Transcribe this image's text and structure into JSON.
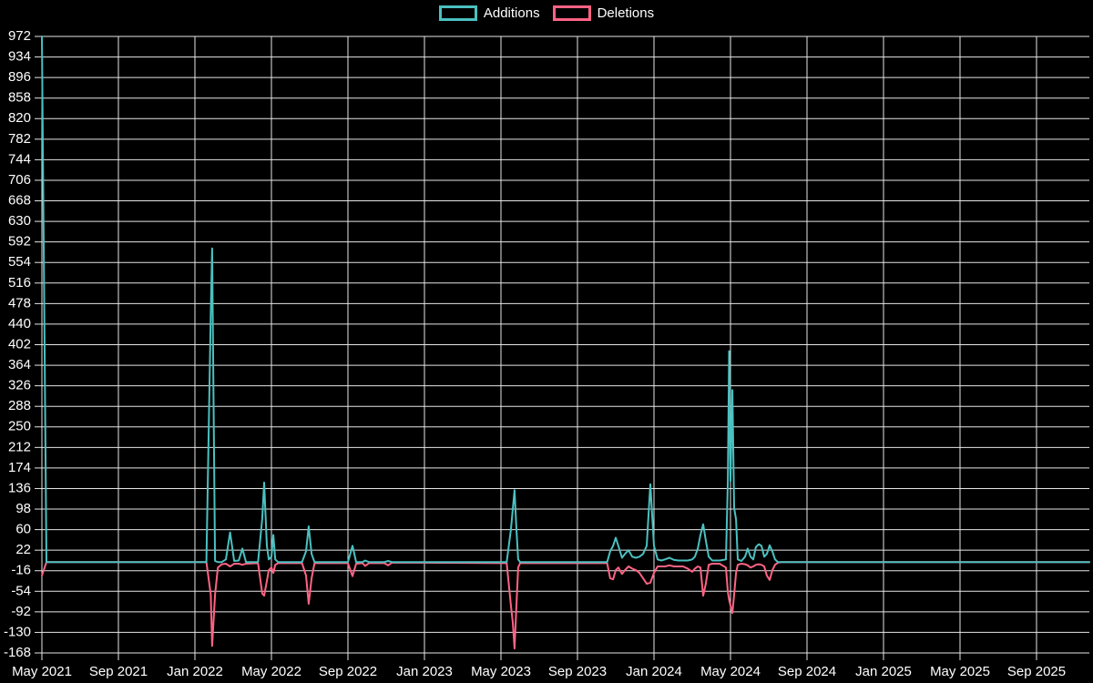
{
  "colors": {
    "background": "#000000",
    "grid": "#e6e6e6",
    "text": "#ffffff",
    "additions": "#4bc0c0",
    "deletions": "#ff6384"
  },
  "legend": {
    "items": [
      {
        "label": "Additions",
        "color": "#4bc0c0"
      },
      {
        "label": "Deletions",
        "color": "#ff6384"
      }
    ]
  },
  "chart_data": {
    "type": "line",
    "title": "",
    "xlabel": "",
    "ylabel": "",
    "legend_position": "top-center",
    "grid": true,
    "x_axis": {
      "unit": "months since May 2021",
      "range": [
        0,
        54.76
      ],
      "tick_positions": [
        0,
        4,
        8,
        12,
        16,
        20,
        24,
        28,
        32,
        36,
        40,
        44,
        48,
        52
      ],
      "tick_labels": [
        "May 2021",
        "Sep 2021",
        "Jan 2022",
        "May 2022",
        "Sep 2022",
        "Jan 2023",
        "May 2023",
        "Sep 2023",
        "Jan 2024",
        "May 2024",
        "Sep 2024",
        "Jan 2025",
        "May 2025",
        "Sep 2025"
      ]
    },
    "y_axis": {
      "range": [
        -168,
        972
      ],
      "tick_step": 38,
      "tick_values": [
        972,
        934,
        896,
        858,
        820,
        782,
        744,
        706,
        668,
        630,
        592,
        554,
        516,
        478,
        440,
        402,
        364,
        326,
        288,
        250,
        212,
        174,
        136,
        98,
        60,
        22,
        -16,
        -54,
        -92,
        -130,
        -168
      ]
    },
    "series": [
      {
        "name": "Additions",
        "color": "#4bc0c0",
        "max": 972
      },
      {
        "name": "Deletions",
        "color": "#ff6384",
        "min": -160
      }
    ],
    "points_format": [
      "x_months_since_2021_05",
      "additions",
      "deletions"
    ],
    "points": [
      [
        0,
        972,
        -25
      ],
      [
        0.24,
        0,
        0
      ],
      [
        8.6,
        0,
        0
      ],
      [
        8.83,
        460,
        -60
      ],
      [
        8.9,
        580,
        -155
      ],
      [
        9.05,
        2,
        -60
      ],
      [
        9.2,
        0,
        -10
      ],
      [
        9.4,
        0,
        -4
      ],
      [
        9.62,
        5,
        -3
      ],
      [
        9.84,
        55,
        -8
      ],
      [
        10.05,
        2,
        -3
      ],
      [
        10.29,
        3,
        -3
      ],
      [
        10.48,
        25,
        -5
      ],
      [
        10.67,
        0,
        -3
      ],
      [
        11.3,
        0,
        -2
      ],
      [
        11.52,
        80,
        -58
      ],
      [
        11.62,
        147,
        -62
      ],
      [
        11.76,
        30,
        -35
      ],
      [
        11.86,
        5,
        -15
      ],
      [
        12.0,
        10,
        -10
      ],
      [
        12.1,
        50,
        -20
      ],
      [
        12.2,
        5,
        -5
      ],
      [
        12.35,
        0,
        -2
      ],
      [
        13.6,
        0,
        -2
      ],
      [
        13.81,
        20,
        -25
      ],
      [
        13.95,
        66,
        -77
      ],
      [
        14.1,
        15,
        -30
      ],
      [
        14.25,
        0,
        -2
      ],
      [
        16.0,
        0,
        -2
      ],
      [
        16.24,
        30,
        -26
      ],
      [
        16.43,
        0,
        -3
      ],
      [
        16.76,
        0,
        -2
      ],
      [
        16.9,
        3,
        -7
      ],
      [
        17.1,
        0,
        -2
      ],
      [
        17.9,
        0,
        -2
      ],
      [
        18.1,
        2,
        -6
      ],
      [
        18.3,
        0,
        -1
      ],
      [
        24.3,
        0,
        -2
      ],
      [
        24.52,
        60,
        -80
      ],
      [
        24.62,
        98,
        -112
      ],
      [
        24.71,
        133,
        -160
      ],
      [
        24.81,
        60,
        -80
      ],
      [
        24.9,
        5,
        -10
      ],
      [
        25.0,
        0,
        -2
      ],
      [
        29.55,
        0,
        -2
      ],
      [
        29.71,
        20,
        -30
      ],
      [
        29.86,
        30,
        -32
      ],
      [
        30.0,
        45,
        -15
      ],
      [
        30.14,
        30,
        -10
      ],
      [
        30.33,
        8,
        -22
      ],
      [
        30.48,
        15,
        -15
      ],
      [
        30.67,
        22,
        -8
      ],
      [
        30.86,
        10,
        -12
      ],
      [
        31.05,
        8,
        -15
      ],
      [
        31.24,
        10,
        -20
      ],
      [
        31.43,
        15,
        -30
      ],
      [
        31.62,
        30,
        -40
      ],
      [
        31.81,
        144,
        -38
      ],
      [
        32.0,
        30,
        -20
      ],
      [
        32.19,
        5,
        -8
      ],
      [
        32.38,
        3,
        -8
      ],
      [
        32.57,
        5,
        -8
      ],
      [
        32.81,
        8,
        -6
      ],
      [
        33.05,
        4,
        -8
      ],
      [
        33.29,
        3,
        -8
      ],
      [
        33.52,
        3,
        -8
      ],
      [
        33.76,
        3,
        -12
      ],
      [
        34.0,
        5,
        -18
      ],
      [
        34.14,
        10,
        -12
      ],
      [
        34.29,
        25,
        -8
      ],
      [
        34.43,
        50,
        -10
      ],
      [
        34.57,
        70,
        -62
      ],
      [
        34.71,
        40,
        -40
      ],
      [
        34.86,
        10,
        -5
      ],
      [
        35.05,
        3,
        -3
      ],
      [
        35.43,
        3,
        -3
      ],
      [
        35.76,
        5,
        -10
      ],
      [
        35.86,
        150,
        -55
      ],
      [
        35.93,
        390,
        -70
      ],
      [
        36.0,
        150,
        -80
      ],
      [
        36.1,
        318,
        -94
      ],
      [
        36.19,
        100,
        -60
      ],
      [
        36.29,
        79,
        -20
      ],
      [
        36.38,
        5,
        -5
      ],
      [
        36.57,
        2,
        -3
      ],
      [
        36.76,
        10,
        -4
      ],
      [
        36.9,
        25,
        -6
      ],
      [
        37.05,
        10,
        -10
      ],
      [
        37.19,
        5,
        -8
      ],
      [
        37.33,
        28,
        -5
      ],
      [
        37.48,
        33,
        -4
      ],
      [
        37.62,
        30,
        -5
      ],
      [
        37.76,
        10,
        -8
      ],
      [
        37.9,
        15,
        -25
      ],
      [
        38.05,
        31,
        -33
      ],
      [
        38.19,
        20,
        -15
      ],
      [
        38.33,
        5,
        -5
      ],
      [
        38.48,
        0,
        -1
      ],
      [
        38.67,
        0,
        0
      ],
      [
        54.76,
        0,
        0
      ]
    ]
  }
}
